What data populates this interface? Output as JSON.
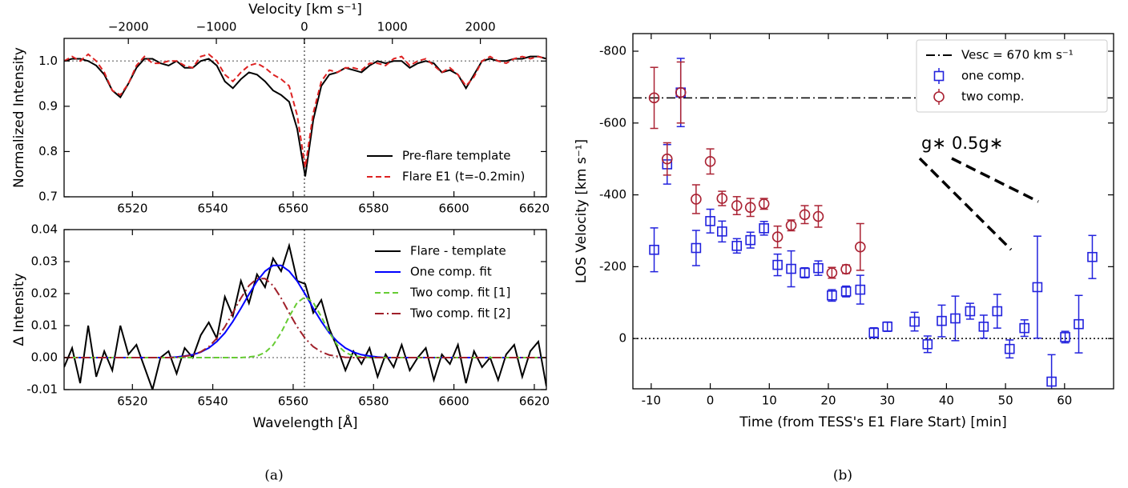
{
  "chart_data": [
    {
      "type": "line",
      "ylabel": "Normalized Intensity",
      "x2label": "Velocity [km s⁻¹]",
      "xlim": [
        6503,
        6623
      ],
      "ylim": [
        0.7,
        1.05
      ],
      "xticks": [
        6520,
        6540,
        6560,
        6580,
        6600,
        6620
      ],
      "yticks": [
        0.7,
        0.8,
        0.9,
        {
          "value": 1,
          "label": "1.0"
        }
      ],
      "x2lim": [
        -2730,
        2750
      ],
      "x2ticks": [
        {
          "value": -2000,
          "label": "−2000"
        },
        {
          "value": -1000,
          "label": "−1000"
        },
        0,
        1000,
        2000
      ],
      "hlines": [
        1
      ],
      "vlines": [
        6562.8
      ],
      "legend": "lower right",
      "x": [
        6503,
        6505,
        6507,
        6509,
        6511,
        6513,
        6515,
        6517,
        6519,
        6521,
        6523,
        6525,
        6527,
        6529,
        6531,
        6533,
        6535,
        6537,
        6539,
        6541,
        6543,
        6545,
        6547,
        6549,
        6551,
        6553,
        6555,
        6557,
        6559,
        6561,
        6563,
        6565,
        6567,
        6569,
        6571,
        6573,
        6575,
        6577,
        6579,
        6581,
        6583,
        6585,
        6587,
        6589,
        6591,
        6593,
        6595,
        6597,
        6599,
        6601,
        6603,
        6605,
        6607,
        6609,
        6611,
        6613,
        6615,
        6617,
        6619,
        6621,
        6623
      ],
      "series": [
        {
          "name": "Pre-flare template",
          "color": "#000000",
          "dash": "solid",
          "values": [
            1.0,
            1.005,
            1.005,
            1.0,
            0.99,
            0.97,
            0.935,
            0.92,
            0.95,
            0.985,
            1.005,
            1.005,
            0.995,
            0.99,
            1.0,
            0.985,
            0.985,
            1.0,
            1.005,
            0.99,
            0.955,
            0.94,
            0.96,
            0.975,
            0.97,
            0.955,
            0.935,
            0.925,
            0.91,
            0.85,
            0.745,
            0.87,
            0.945,
            0.97,
            0.975,
            0.985,
            0.98,
            0.975,
            0.99,
            1.0,
            0.995,
            1.0,
            1.0,
            0.985,
            0.995,
            1.0,
            0.995,
            0.975,
            0.98,
            0.97,
            0.94,
            0.97,
            1.0,
            1.005,
            1.0,
            1.0,
            1.005,
            1.005,
            1.01,
            1.01,
            1.005
          ]
        },
        {
          "name": "Flare E1 (t=-0.2min)",
          "color": "#dd2222",
          "dash": "dashed",
          "values": [
            1.0,
            1.01,
            1.0,
            1.015,
            1.0,
            0.975,
            0.935,
            0.925,
            0.95,
            0.99,
            1.01,
            0.995,
            0.995,
            1.0,
            1.0,
            0.99,
            0.985,
            1.01,
            1.015,
            1.0,
            0.97,
            0.955,
            0.975,
            0.99,
            0.995,
            0.985,
            0.97,
            0.96,
            0.945,
            0.88,
            0.765,
            0.885,
            0.955,
            0.98,
            0.975,
            0.985,
            0.985,
            0.98,
            0.995,
            0.995,
            0.99,
            1.005,
            1.01,
            0.99,
            1.0,
            1.005,
            0.99,
            0.975,
            0.985,
            0.97,
            0.945,
            0.965,
            1.0,
            1.01,
            1.0,
            0.995,
            1.005,
            1.01,
            1.005,
            1.01,
            1.005
          ]
        }
      ]
    },
    {
      "type": "line",
      "xlabel": "Wavelength [Å]",
      "ylabel": "Δ Intensity",
      "xlim": [
        6503,
        6623
      ],
      "ylim": [
        -0.01,
        0.04
      ],
      "xticks": [
        6520,
        6540,
        6560,
        6580,
        6600,
        6620
      ],
      "yticks": [
        -0.01,
        {
          "value": 0,
          "label": "0.00"
        },
        0.01,
        0.02,
        0.03,
        0.04
      ],
      "hlines": [
        0
      ],
      "vlines": [
        6562.8
      ],
      "legend": "upper right",
      "x": [
        6503,
        6505,
        6507,
        6509,
        6511,
        6513,
        6515,
        6517,
        6519,
        6521,
        6523,
        6525,
        6527,
        6529,
        6531,
        6533,
        6535,
        6537,
        6539,
        6541,
        6543,
        6545,
        6547,
        6549,
        6551,
        6553,
        6555,
        6557,
        6559,
        6561,
        6563,
        6565,
        6567,
        6569,
        6571,
        6573,
        6575,
        6577,
        6579,
        6581,
        6583,
        6585,
        6587,
        6589,
        6591,
        6593,
        6595,
        6597,
        6599,
        6601,
        6603,
        6605,
        6607,
        6609,
        6611,
        6613,
        6615,
        6617,
        6619,
        6621,
        6623
      ],
      "series": [
        {
          "name": "Flare - template",
          "color": "#000000",
          "dash": "solid",
          "values": [
            -0.003,
            0.003,
            -0.008,
            0.01,
            -0.006,
            0.002,
            -0.004,
            0.01,
            0.001,
            0.004,
            -0.003,
            -0.01,
            0.0,
            0.002,
            -0.005,
            0.003,
            0.0,
            0.007,
            0.011,
            0.006,
            0.019,
            0.013,
            0.024,
            0.017,
            0.026,
            0.022,
            0.031,
            0.027,
            0.035,
            0.024,
            0.023,
            0.014,
            0.018,
            0.009,
            0.003,
            -0.004,
            0.002,
            -0.002,
            0.003,
            -0.006,
            0.001,
            -0.003,
            0.004,
            -0.004,
            0.0,
            0.003,
            -0.007,
            0.001,
            -0.002,
            0.004,
            -0.008,
            0.002,
            -0.003,
            0.0,
            -0.007,
            0.001,
            0.004,
            -0.006,
            0.002,
            0.005,
            -0.009
          ]
        },
        {
          "name": "One comp. fit",
          "color": "#0000ff",
          "dash": "solid",
          "values": [
            0,
            0,
            0,
            0,
            0,
            0,
            0,
            0,
            0,
            0,
            0,
            0,
            0,
            0,
            0.0002,
            0.0005,
            0.0009,
            0.0017,
            0.003,
            0.005,
            0.0077,
            0.0113,
            0.0154,
            0.0198,
            0.0239,
            0.027,
            0.0288,
            0.0288,
            0.027,
            0.0239,
            0.0198,
            0.0154,
            0.0113,
            0.0077,
            0.005,
            0.003,
            0.0017,
            0.0009,
            0.0005,
            0.0002,
            0,
            0,
            0,
            0,
            0,
            0,
            0,
            0,
            0,
            0,
            0,
            0,
            0,
            0,
            0,
            0,
            0,
            0,
            0,
            0,
            0
          ]
        },
        {
          "name": "Two comp. fit [1]",
          "color": "#66cc33",
          "dash": "dashed",
          "values": [
            0,
            0,
            0,
            0,
            0,
            0,
            0,
            0,
            0,
            0,
            0,
            0,
            0,
            0,
            0,
            0,
            0,
            0,
            0,
            0,
            0,
            0,
            0,
            0.0002,
            0.0005,
            0.0016,
            0.0039,
            0.0078,
            0.0128,
            0.0172,
            0.019,
            0.0172,
            0.0128,
            0.0078,
            0.0039,
            0.0016,
            0.0005,
            0.0002,
            0,
            0,
            0,
            0,
            0,
            0,
            0,
            0,
            0,
            0,
            0,
            0,
            0,
            0,
            0,
            0,
            0,
            0,
            0,
            0,
            0,
            0,
            0
          ]
        },
        {
          "name": "Two comp. fit [2]",
          "color": "#a0202a",
          "dash": "dashdot",
          "values": [
            0,
            0,
            0,
            0,
            0,
            0,
            0,
            0,
            0,
            0,
            0,
            0,
            0,
            0,
            0.0001,
            0.0004,
            0.0008,
            0.0018,
            0.0034,
            0.006,
            0.0096,
            0.014,
            0.0186,
            0.0225,
            0.0247,
            0.0247,
            0.0225,
            0.0186,
            0.014,
            0.0096,
            0.006,
            0.0034,
            0.0018,
            0.0008,
            0.0004,
            0.0001,
            0,
            0,
            0,
            0,
            0,
            0,
            0,
            0,
            0,
            0,
            0,
            0,
            0,
            0,
            0,
            0,
            0,
            0,
            0,
            0,
            0,
            0,
            0,
            0,
            0
          ]
        }
      ]
    },
    {
      "type": "scatter",
      "xlabel": "Time (from TESS's E1 Flare Start) [min]",
      "ylabel": "LOS Velocity [km s⁻¹]",
      "xlim": [
        -13.1,
        68.3
      ],
      "ylim": [
        140,
        -849
      ],
      "xticks": [
        -10,
        0,
        10,
        20,
        30,
        40,
        50,
        60
      ],
      "yticks": [
        -800,
        -600,
        -400,
        -200,
        0
      ],
      "hlines": [
        0
      ],
      "legend": "upper right",
      "annotations": [
        {
          "text": "g∗"
        },
        {
          "text": "0.5g∗"
        }
      ],
      "series": [
        {
          "name": "Vesc = 670 km s⁻¹",
          "type": "hline",
          "value": -670,
          "color": "#000000",
          "dash": "dashdot"
        },
        {
          "name": "one comp.",
          "marker": "square",
          "color": "#2222dd",
          "x": [
            -9.5,
            -7.3,
            -5,
            -2.4,
            0,
            2,
            4.5,
            6.8,
            9.1,
            11.4,
            13.7,
            16,
            18.3,
            20.6,
            23,
            25.4,
            27.7,
            30,
            34.6,
            36.8,
            39.2,
            41.5,
            44,
            46.3,
            48.6,
            50.7,
            53.2,
            55.4,
            57.8,
            60.1,
            62.4,
            64.7
          ],
          "values": [
            -247,
            -485,
            -685,
            -252,
            -327,
            -298,
            -258,
            -274,
            -307,
            -205,
            -194,
            -183,
            -196,
            -120,
            -131,
            -136,
            -16,
            -33,
            -47,
            16,
            -49,
            -56,
            -76,
            -33,
            -76,
            29,
            -29,
            -143,
            120,
            -4,
            -40,
            -227
          ],
          "errors": [
            61,
            55,
            95,
            49,
            33,
            29,
            20,
            22,
            19,
            30,
            50,
            14,
            20,
            16,
            15,
            40,
            14,
            13,
            26,
            23,
            44,
            62,
            22,
            32,
            47,
            25,
            23,
            142,
            75,
            16,
            80,
            60
          ]
        },
        {
          "name": "two comp.",
          "marker": "circle",
          "color": "#aa2233",
          "x": [
            -9.5,
            -7.3,
            -5,
            -2.4,
            0,
            2,
            4.5,
            6.8,
            9.1,
            11.4,
            13.7,
            16,
            18.3,
            20.6,
            23,
            25.4
          ],
          "values": [
            -670,
            -500,
            -685,
            -388,
            -493,
            -390,
            -370,
            -365,
            -375,
            -283,
            -315,
            -345,
            -340,
            -183,
            -193,
            -255
          ],
          "errors": [
            85,
            45,
            85,
            40,
            35,
            20,
            25,
            25,
            15,
            30,
            15,
            25,
            30,
            15,
            12,
            65
          ]
        }
      ]
    }
  ],
  "captions": [
    "(a)",
    "(b)"
  ]
}
